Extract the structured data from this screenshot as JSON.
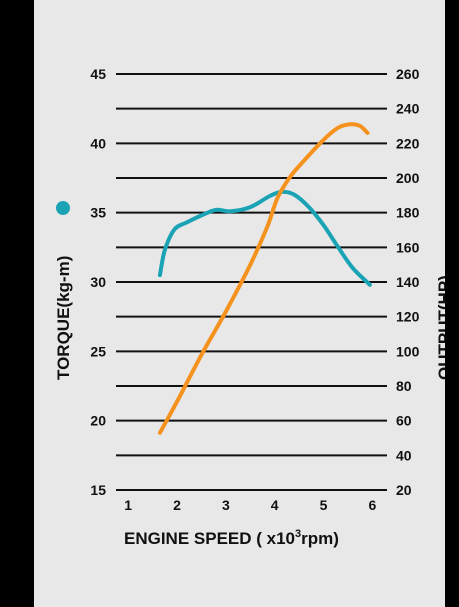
{
  "chart_data": {
    "type": "line",
    "xlabel": "ENGINE SPEED ( x10",
    "xlabel_sup": "3",
    "xlabel_suffix": "rpm)",
    "ylabel_left": "TORQUE(kg-m)",
    "ylabel_right": "OUTPUT(HP)",
    "x_ticks": [
      1,
      2,
      3,
      4,
      5,
      6
    ],
    "xlim": [
      0.75,
      6.3
    ],
    "left_ticks": [
      15,
      20,
      25,
      30,
      35,
      40,
      45
    ],
    "left_ylim": [
      15,
      45
    ],
    "right_ticks": [
      20,
      40,
      60,
      80,
      100,
      120,
      140,
      160,
      180,
      200,
      220,
      240,
      260
    ],
    "right_ylim": [
      20,
      260
    ],
    "grid": true,
    "series": [
      {
        "name": "TORQUE(kg-m)",
        "axis": "left",
        "color": "#1aa3b4",
        "marker_color": "#1aa3b4",
        "x": [
          1.65,
          1.75,
          1.95,
          2.2,
          2.5,
          2.8,
          3.1,
          3.5,
          3.9,
          4.15,
          4.4,
          4.7,
          5.0,
          5.3,
          5.6,
          5.95
        ],
        "y": [
          30.5,
          32.3,
          33.8,
          34.3,
          34.8,
          35.2,
          35.1,
          35.4,
          36.2,
          36.5,
          36.3,
          35.4,
          34.1,
          32.5,
          31.0,
          29.8
        ]
      },
      {
        "name": "OUTPUT(HP)",
        "axis": "right",
        "color": "#f5921e",
        "marker_color": "#f5921e",
        "x": [
          1.65,
          2.0,
          2.5,
          3.0,
          3.5,
          3.85,
          4.05,
          4.3,
          4.6,
          5.0,
          5.3,
          5.55,
          5.75,
          5.9
        ],
        "y": [
          53,
          71,
          98,
          123,
          150,
          172,
          188,
          200,
          210,
          222,
          229,
          231,
          230,
          226
        ]
      }
    ]
  }
}
